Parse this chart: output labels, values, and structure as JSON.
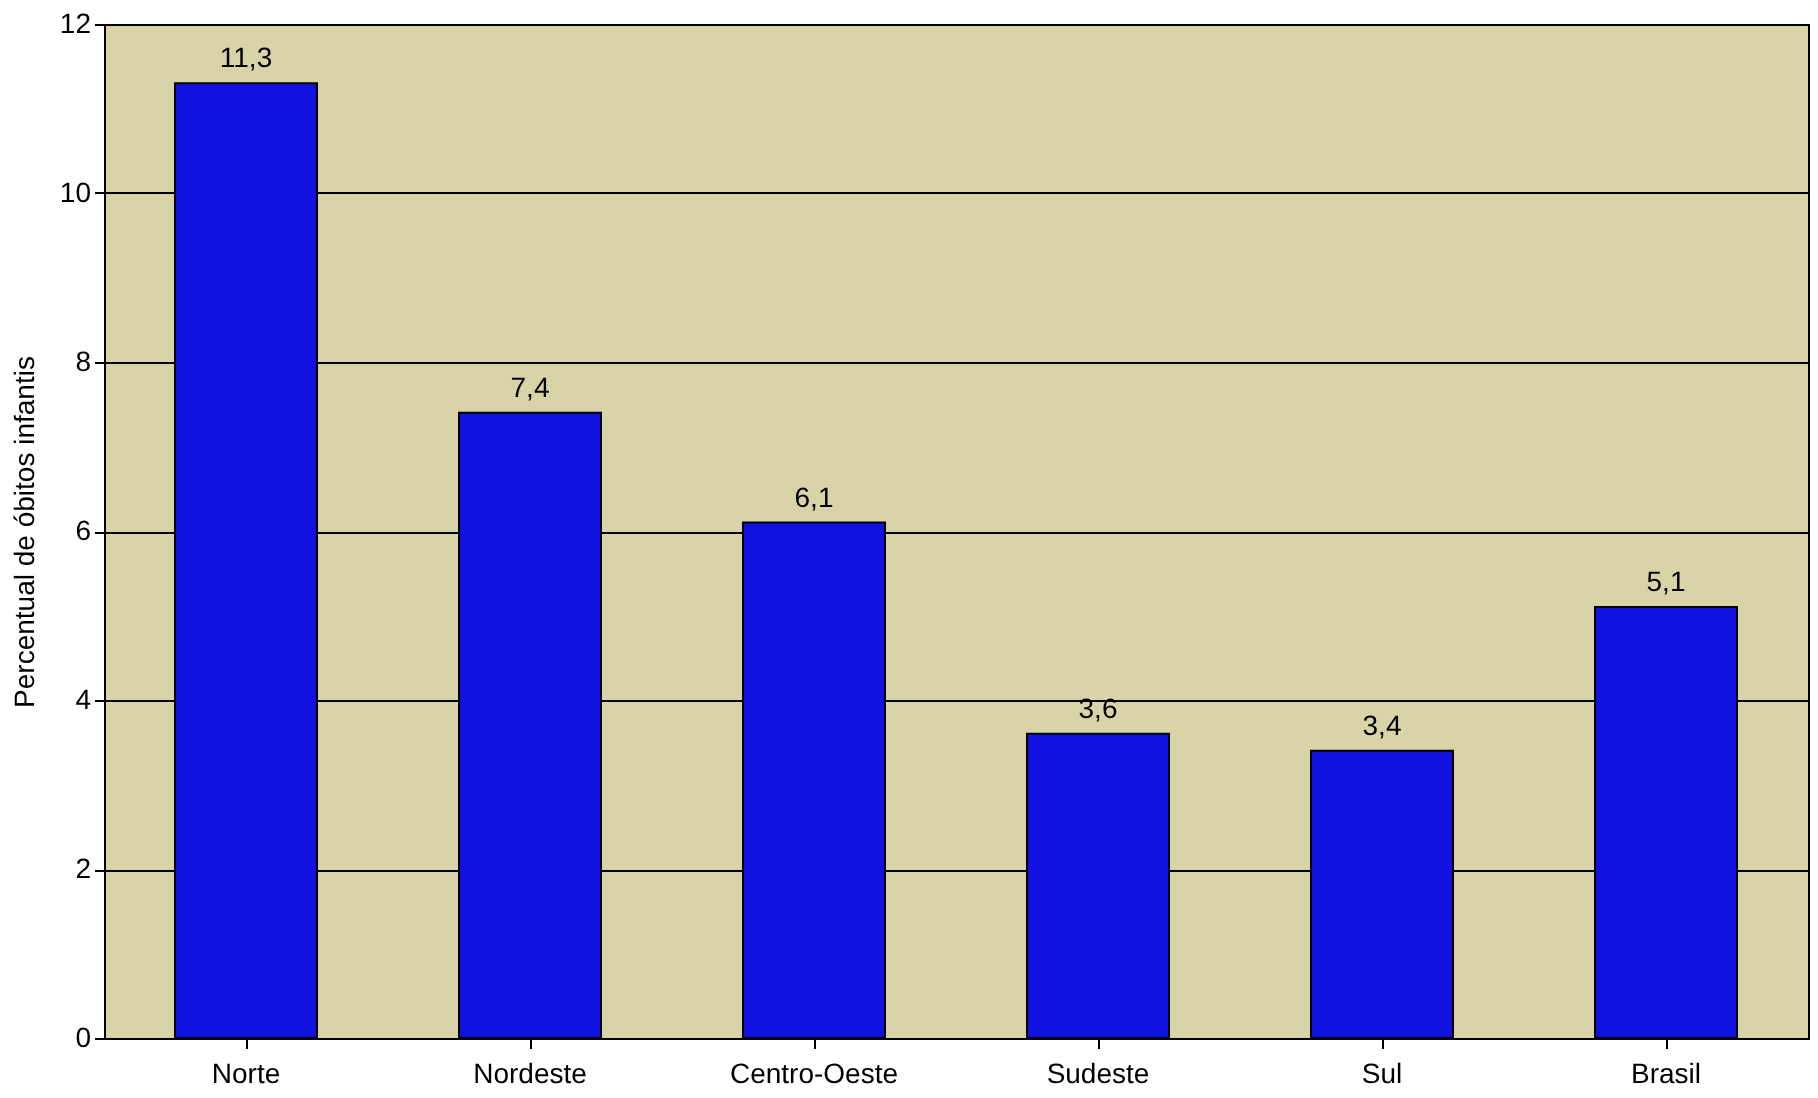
{
  "chart_data": {
    "type": "bar",
    "ylabel": "Percentual de óbitos infantis",
    "categories": [
      "Norte",
      "Nordeste",
      "Centro-Oeste",
      "Sudeste",
      "Sul",
      "Brasil"
    ],
    "values": [
      11.3,
      7.4,
      6.1,
      3.6,
      3.4,
      5.1
    ],
    "value_labels": [
      "11,3",
      "7,4",
      "6,1",
      "3,6",
      "3,4",
      "5,1"
    ],
    "color": "#1010e0",
    "ylim": [
      0,
      12
    ],
    "yticks": [
      0,
      2,
      4,
      6,
      8,
      10,
      12
    ],
    "grid": "y"
  }
}
